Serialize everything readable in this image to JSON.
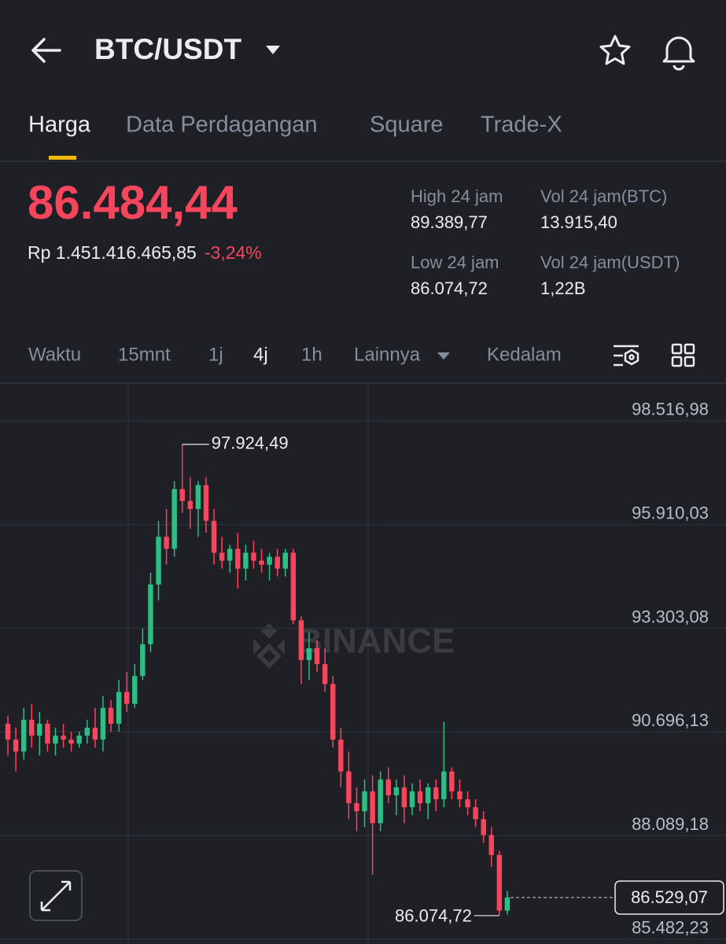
{
  "header": {
    "pair": "BTC/USDT"
  },
  "tabs": [
    "Harga",
    "Data Perdagangan",
    "Square",
    "Trade-X"
  ],
  "price": {
    "last": "86.484,44",
    "idr": "Rp 1.451.416.465,85",
    "change": "-3,24%"
  },
  "stats": [
    {
      "label": "High 24 jam",
      "value": "89.389,77"
    },
    {
      "label": "Vol 24 jam(BTC)",
      "value": "13.915,40"
    },
    {
      "label": "Low 24 jam",
      "value": "86.074,72"
    },
    {
      "label": "Vol 24 jam(USDT)",
      "value": "1,22B"
    }
  ],
  "intervals": [
    "Waktu",
    "15mnt",
    "1j",
    "4j",
    "1h",
    "Lainnya",
    "Kedalam"
  ],
  "watermark": "BINANCE",
  "chart_data": {
    "type": "candlestick",
    "open": [
      90900,
      90500,
      90200,
      91000,
      90600,
      90900,
      90400,
      90600,
      90500,
      90400,
      90600,
      90800,
      90500,
      91300,
      90900,
      91700,
      91400,
      92100,
      92900,
      94400,
      95600,
      95300,
      96800,
      96500,
      96300,
      96900,
      96000,
      95200,
      95000,
      95300,
      94800,
      95200,
      95000,
      94900,
      95100,
      94800,
      95200,
      93500,
      92500,
      92800,
      92400,
      91900,
      90500,
      89700,
      88900,
      88700,
      89200,
      88400,
      89500,
      89100,
      89300,
      88800,
      89200,
      88900,
      89300,
      89000,
      89700,
      89200,
      89000,
      88800,
      88500,
      88100,
      87600,
      86200
    ],
    "high": [
      91100,
      90800,
      91300,
      91400,
      91200,
      91000,
      90800,
      90900,
      90700,
      90700,
      91000,
      91300,
      91600,
      91500,
      92000,
      92200,
      92400,
      93300,
      94700,
      96000,
      96300,
      97000,
      97924.49,
      97100,
      97000,
      97100,
      96300,
      95600,
      95400,
      95700,
      95400,
      95500,
      95300,
      95200,
      95300,
      95300,
      95300,
      93600,
      93200,
      93000,
      92800,
      92100,
      90800,
      90200,
      89300,
      89500,
      89600,
      89700,
      89800,
      89500,
      89600,
      89400,
      89500,
      89400,
      89500,
      90950,
      89800,
      89500,
      89200,
      89000,
      88700,
      88300,
      87700,
      86700
    ],
    "low": [
      90100,
      89700,
      90000,
      90300,
      90100,
      90200,
      90100,
      90300,
      90200,
      90300,
      90400,
      90300,
      90200,
      90700,
      90700,
      91200,
      91300,
      92000,
      92700,
      94000,
      94900,
      95100,
      96200,
      95800,
      95600,
      95700,
      94900,
      94800,
      94700,
      94300,
      94500,
      94800,
      94700,
      94500,
      94600,
      94600,
      93400,
      91900,
      92000,
      92200,
      91700,
      90300,
      89300,
      88500,
      88200,
      88300,
      87100,
      88200,
      88900,
      88600,
      88400,
      88600,
      88700,
      88500,
      88700,
      88800,
      89000,
      88800,
      88600,
      88300,
      87900,
      87300,
      86074.72,
      86100
    ],
    "close": [
      90500,
      90200,
      91000,
      90600,
      90900,
      90400,
      90600,
      90500,
      90400,
      90600,
      90800,
      90500,
      91300,
      90900,
      91700,
      91400,
      92100,
      92900,
      94400,
      95600,
      95300,
      96800,
      96500,
      96300,
      96900,
      96000,
      95200,
      95000,
      95300,
      94800,
      95200,
      95000,
      94900,
      95100,
      94800,
      95200,
      93500,
      92500,
      92800,
      92400,
      91900,
      90500,
      89700,
      88900,
      88700,
      89200,
      88400,
      89500,
      89100,
      89300,
      88800,
      89200,
      88900,
      89300,
      89000,
      89700,
      89200,
      89000,
      88800,
      88500,
      88100,
      87600,
      86200,
      86529.07
    ],
    "up_color": "#2ebd85",
    "down_color": "#f6465d",
    "ylim": [
      85460,
      99465
    ],
    "yticks": [
      {
        "value": 98516.98,
        "label": "98.516,98"
      },
      {
        "value": 95910.03,
        "label": "95.910,03"
      },
      {
        "value": 93303.08,
        "label": "93.303,08"
      },
      {
        "value": 90696.13,
        "label": "90.696,13"
      },
      {
        "value": 88089.18,
        "label": "88.089,18"
      },
      {
        "value": 85482.23,
        "label": "85.482,23"
      }
    ],
    "grid": true,
    "high_marker": {
      "value": 97924.49,
      "label": "97.924,49"
    },
    "low_marker": {
      "value": 86074.72,
      "label": "86.074,72"
    },
    "last_price": {
      "value": 86529.07,
      "label": "86.529,07"
    }
  }
}
